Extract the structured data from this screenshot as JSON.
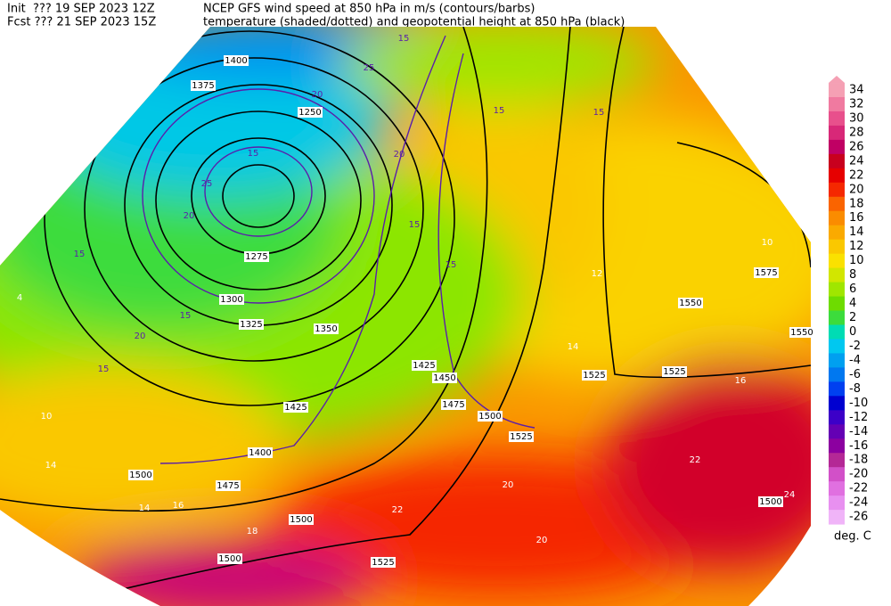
{
  "header": {
    "init": "Init  ??? 19 SEP 2023 12Z",
    "fcst": "Fcst ??? 21 SEP 2023 15Z",
    "title": "NCEP GFS wind speed at 850 hPa in m/s (contours/barbs)",
    "subtitle": "temperature (shaded/dotted) and geopotential height at 850 hPa (black)"
  },
  "colorbar": {
    "values": [
      34,
      32,
      30,
      28,
      26,
      24,
      22,
      20,
      18,
      16,
      14,
      12,
      10,
      8,
      6,
      4,
      2,
      0,
      -2,
      -4,
      -6,
      -8,
      -10,
      -12,
      -14,
      -16,
      -18,
      -20,
      -22,
      -24,
      -26
    ],
    "colors": [
      "#f5a0b4",
      "#f07aa0",
      "#e8508c",
      "#d82878",
      "#c00064",
      "#c8001e",
      "#e60000",
      "#f52800",
      "#fa6400",
      "#fa8c00",
      "#faaa00",
      "#fac800",
      "#fae100",
      "#d2e600",
      "#a0e600",
      "#6edc00",
      "#3cdc3c",
      "#00dcb4",
      "#00c8f0",
      "#00a0f0",
      "#0078f0",
      "#0040f0",
      "#0000d0",
      "#3c00c8",
      "#6400b4",
      "#8c00a0",
      "#b42896",
      "#d250c8",
      "#e070e0",
      "#e890f0",
      "#f0b4f8"
    ],
    "unit": "deg. C"
  },
  "map": {
    "height_labels": [
      1400,
      1375,
      1250,
      1275,
      1300,
      1325,
      1350,
      1425,
      1400,
      1475,
      1500,
      1500,
      1500,
      1525,
      1425,
      1450,
      1475,
      1500,
      1525,
      1525,
      1525,
      1550,
      1575,
      1550,
      1500
    ],
    "wind_labels": [
      15,
      25,
      20,
      15,
      25,
      20,
      15,
      15,
      20,
      15,
      15,
      15,
      15,
      15,
      20
    ],
    "temperature_labels": [
      10,
      14,
      14,
      16,
      18,
      22,
      20,
      20,
      22,
      24,
      10,
      12,
      14,
      16,
      4
    ]
  }
}
